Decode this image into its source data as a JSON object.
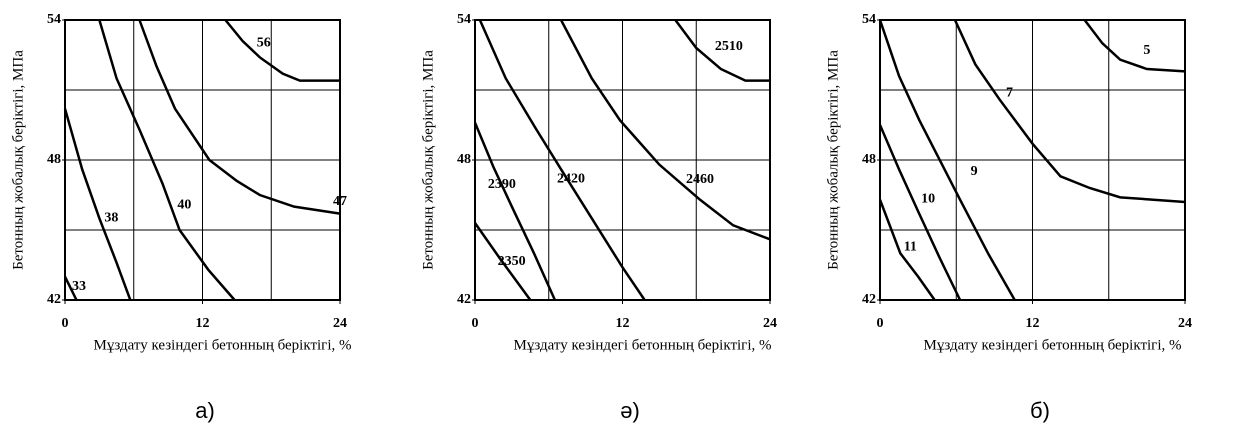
{
  "chart_data": [
    {
      "type": "line",
      "caption": "а)",
      "xlabel": "Мұздату кезіндегі бетонның беріктігі, %",
      "ylabel": "Бетонның жобалық беріктігі, МПа",
      "xlim": [
        0,
        24
      ],
      "ylim": [
        42,
        54
      ],
      "xticks": [
        0,
        12,
        24
      ],
      "yticks": [
        42,
        48,
        54
      ],
      "xgrid": [
        6,
        12,
        18
      ],
      "ygrid": [
        45,
        48,
        51
      ],
      "color": "#000000",
      "series": [
        {
          "name": "33",
          "x": [
            0,
            1
          ],
          "values": [
            43,
            42
          ]
        },
        {
          "name": "38",
          "x": [
            0,
            1.5,
            3,
            4.5,
            5.7
          ],
          "values": [
            50.2,
            47.6,
            45.5,
            43.6,
            42
          ]
        },
        {
          "name": "40",
          "x": [
            3,
            4.5,
            6.5,
            8.5,
            10,
            12.5,
            14.8
          ],
          "values": [
            54,
            51.5,
            49.3,
            47,
            45,
            43.3,
            42
          ]
        },
        {
          "name": "47",
          "x": [
            6.5,
            8,
            9.6,
            12.6,
            15,
            17,
            20,
            24
          ],
          "values": [
            54,
            52,
            50.2,
            48,
            47.1,
            46.5,
            46,
            45.7
          ]
        },
        {
          "name": "56",
          "x": [
            14,
            15.5,
            17,
            19,
            20.5,
            24
          ],
          "values": [
            54,
            53.1,
            52.4,
            51.7,
            51.4,
            51.4
          ]
        }
      ]
    },
    {
      "type": "line",
      "caption": "ә)",
      "xlabel": "Мұздату кезіндегі бетонның беріктігі, %",
      "ylabel": "Бетонның жобалық беріктігі, МПа",
      "xlim": [
        0,
        24
      ],
      "ylim": [
        42,
        54
      ],
      "xticks": [
        0,
        12,
        24
      ],
      "yticks": [
        42,
        48,
        54
      ],
      "xgrid": [
        6,
        12,
        18
      ],
      "ygrid": [
        45,
        48,
        51
      ],
      "color": "#000000",
      "series": [
        {
          "name": "2350",
          "x": [
            0,
            2,
            4.5
          ],
          "values": [
            45.3,
            43.8,
            42
          ]
        },
        {
          "name": "2390",
          "x": [
            0,
            1.5,
            3,
            4.8,
            6.5
          ],
          "values": [
            49.6,
            47.7,
            46,
            44,
            42
          ]
        },
        {
          "name": "2420",
          "x": [
            0.4,
            2.5,
            5,
            7,
            9.5,
            12,
            13.8
          ],
          "values": [
            54,
            51.5,
            49.3,
            47.6,
            45.5,
            43.4,
            42
          ]
        },
        {
          "name": "2460",
          "x": [
            7,
            9.5,
            11.8,
            15,
            18.3,
            21,
            24
          ],
          "values": [
            54,
            51.5,
            49.7,
            47.8,
            46.3,
            45.2,
            44.6
          ]
        },
        {
          "name": "2510",
          "x": [
            16.3,
            18,
            20,
            22,
            24
          ],
          "values": [
            54,
            52.8,
            51.9,
            51.4,
            51.4
          ]
        }
      ]
    },
    {
      "type": "line",
      "caption": "б)",
      "xlabel": "Мұздату кезіндегі бетонның беріктігі, %",
      "ylabel": "Бетонның жобалық беріктігі, МПа",
      "xlim": [
        0,
        24
      ],
      "ylim": [
        42,
        54
      ],
      "xticks": [
        0,
        12,
        24
      ],
      "yticks": [
        42,
        48,
        54
      ],
      "xgrid": [
        6,
        12,
        18
      ],
      "ygrid": [
        45,
        48,
        51
      ],
      "color": "#000000",
      "series": [
        {
          "name": "11",
          "x": [
            0,
            1.6,
            3,
            4.3
          ],
          "values": [
            46.3,
            44,
            43,
            42
          ]
        },
        {
          "name": "10",
          "x": [
            0,
            1.5,
            3,
            4.7,
            6.3
          ],
          "values": [
            49.5,
            47.6,
            45.8,
            43.8,
            42
          ]
        },
        {
          "name": "9",
          "x": [
            0,
            1.5,
            3.1,
            6.3,
            8.5,
            10.6
          ],
          "values": [
            54,
            51.6,
            49.7,
            46.3,
            44,
            42
          ]
        },
        {
          "name": "7",
          "x": [
            5.9,
            7.5,
            9.4,
            12,
            14.2,
            16.5,
            18.9,
            24
          ],
          "values": [
            54,
            52.1,
            50.6,
            48.7,
            47.3,
            46.8,
            46.4,
            46.2
          ]
        },
        {
          "name": "5",
          "x": [
            16.1,
            17.5,
            18.9,
            21,
            24
          ],
          "values": [
            54,
            53,
            52.3,
            51.9,
            51.8
          ]
        }
      ]
    }
  ]
}
